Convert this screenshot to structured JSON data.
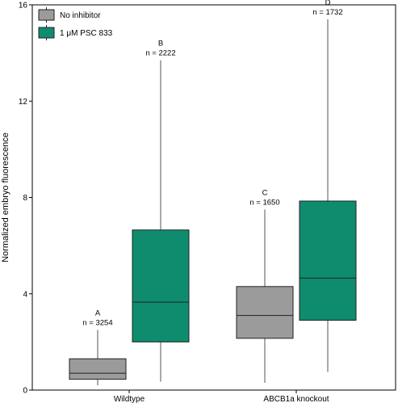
{
  "chart_data": {
    "type": "box",
    "ylabel": "Normalized embryo fluorescence",
    "xlabel": "",
    "ylim": [
      0,
      16
    ],
    "yticks": [
      0,
      4,
      8,
      12,
      16
    ],
    "categories": [
      "Wildtype",
      "ABCB1a knockout"
    ],
    "legend_position": "top-left",
    "series": [
      {
        "name": "No inhibitor",
        "color": "#9b9b9b",
        "boxes": [
          {
            "category": "Wildtype",
            "whisker_low": 0.2,
            "q1": 0.45,
            "median": 0.7,
            "q3": 1.3,
            "whisker_high": 2.5,
            "letter": "A",
            "n_label": "n = 3254"
          },
          {
            "category": "ABCB1a knockout",
            "whisker_low": 0.3,
            "q1": 2.15,
            "median": 3.1,
            "q3": 4.3,
            "whisker_high": 7.5,
            "letter": "C",
            "n_label": "n = 1650"
          }
        ]
      },
      {
        "name": "1 μM PSC 833",
        "color": "#0f8c6e",
        "boxes": [
          {
            "category": "Wildtype",
            "whisker_low": 0.35,
            "q1": 2.0,
            "median": 3.65,
            "q3": 6.65,
            "whisker_high": 13.7,
            "letter": "B",
            "n_label": "n = 2222"
          },
          {
            "category": "ABCB1a knockout",
            "whisker_low": 0.75,
            "q1": 2.9,
            "median": 4.65,
            "q3": 7.85,
            "whisker_high": 15.4,
            "letter": "D",
            "n_label": "n = 1732"
          }
        ]
      }
    ]
  }
}
